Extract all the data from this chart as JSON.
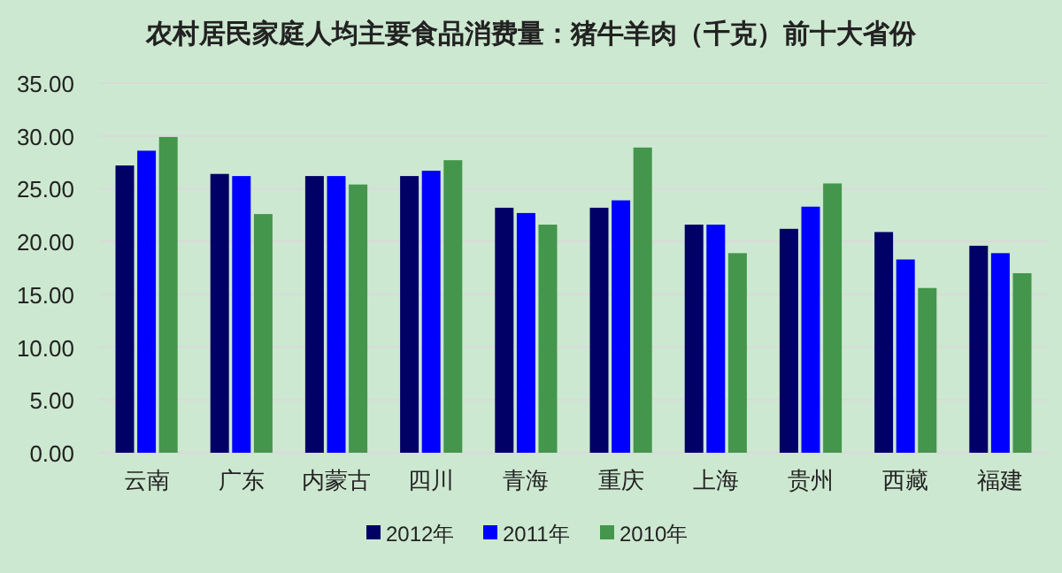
{
  "chart_data": {
    "type": "bar",
    "title": "农村居民家庭人均主要食品消费量：猪牛羊肉（千克）前十大省份",
    "categories": [
      "云南",
      "广东",
      "内蒙古",
      "四川",
      "青海",
      "重庆",
      "上海",
      "贵州",
      "西藏",
      "福建"
    ],
    "series": [
      {
        "name": "2012年",
        "color": "#000066",
        "values": [
          27.2,
          26.4,
          26.2,
          26.2,
          23.2,
          23.2,
          21.6,
          21.2,
          20.9,
          19.6
        ]
      },
      {
        "name": "2011年",
        "color": "#0000ff",
        "values": [
          28.6,
          26.2,
          26.2,
          26.7,
          22.7,
          23.9,
          21.6,
          23.3,
          18.3,
          18.9
        ]
      },
      {
        "name": "2010年",
        "color": "#43964b",
        "values": [
          29.9,
          22.6,
          25.4,
          27.7,
          21.6,
          28.9,
          18.9,
          25.5,
          15.6,
          17.0
        ]
      }
    ],
    "ylim": [
      0,
      35
    ],
    "yticks": [
      {
        "value": 0,
        "label": "0.00"
      },
      {
        "value": 5,
        "label": "5.00"
      },
      {
        "value": 10,
        "label": "10.00"
      },
      {
        "value": 15,
        "label": "15.00"
      },
      {
        "value": 20,
        "label": "20.00"
      },
      {
        "value": 25,
        "label": "25.00"
      },
      {
        "value": 30,
        "label": "30.00"
      },
      {
        "value": 35,
        "label": "35.00"
      }
    ],
    "grid": "y",
    "legend": "bottom"
  }
}
